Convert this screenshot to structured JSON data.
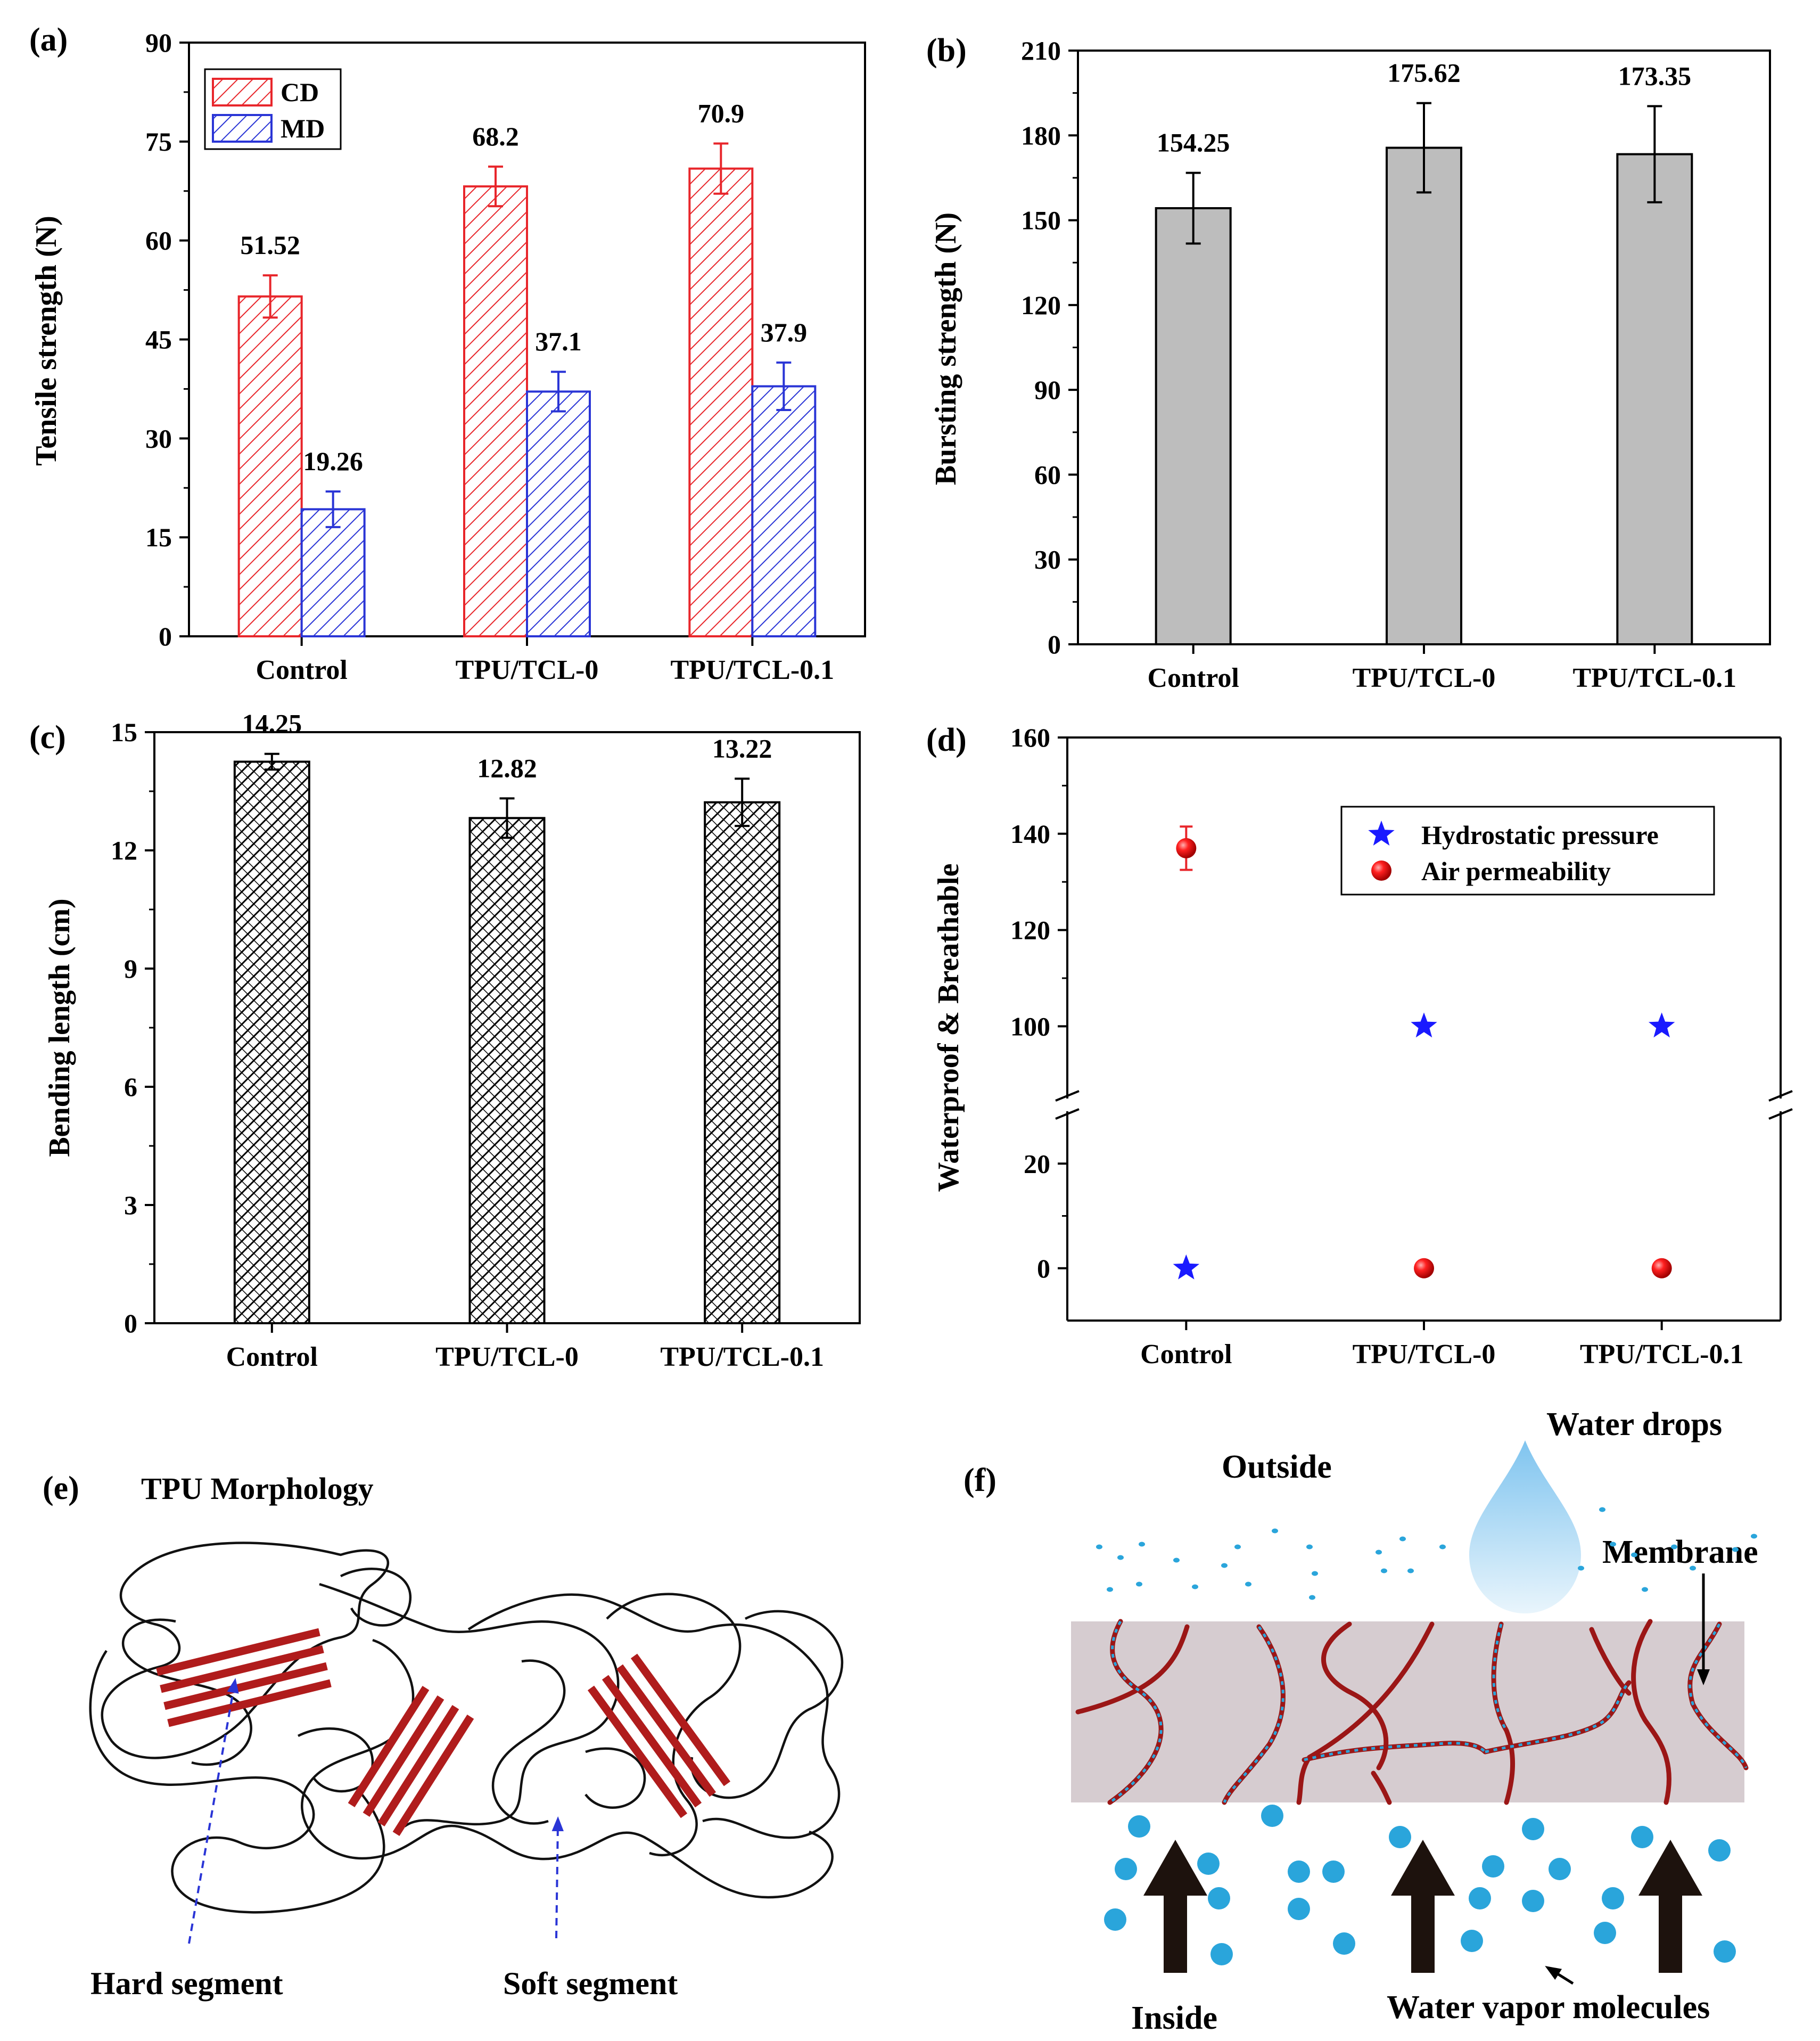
{
  "chart_data": [
    {
      "panel": "(a)",
      "type": "bar",
      "categories": [
        "Control",
        "TPU/TCL-0",
        "TPU/TCL-0.1"
      ],
      "series": [
        {
          "name": "CD",
          "color": "#e8262b",
          "values": [
            51.52,
            68.2,
            70.9
          ],
          "errors": [
            3.2,
            3.0,
            3.8
          ],
          "labels": [
            "51.52",
            "68.2",
            "70.9"
          ]
        },
        {
          "name": "MD",
          "color": "#2a35d6",
          "values": [
            19.26,
            37.1,
            37.9
          ],
          "errors": [
            2.7,
            3.0,
            3.6
          ],
          "labels": [
            "19.26",
            "37.1",
            "37.9"
          ]
        }
      ],
      "ylabel": "Tensile strength (N)",
      "ylim": [
        0,
        90
      ],
      "yticks": [
        0,
        15,
        30,
        45,
        60,
        75,
        90
      ],
      "ytick_labels": [
        "0",
        "15",
        "30",
        "45",
        "60",
        "75",
        "90"
      ],
      "legend": "top-left"
    },
    {
      "panel": "(b)",
      "type": "bar",
      "categories": [
        "Control",
        "TPU/TCL-0",
        "TPU/TCL-0.1"
      ],
      "series": [
        {
          "name": "Bursting strength",
          "color": "#bdbdbd",
          "values": [
            154.25,
            175.62,
            173.35
          ],
          "errors": [
            12.5,
            15.8,
            17.0
          ],
          "labels": [
            "154.25",
            "175.62",
            "173.35"
          ]
        }
      ],
      "ylabel": "Bursting strength (N)",
      "ylim": [
        0,
        210
      ],
      "yticks": [
        0,
        30,
        60,
        90,
        120,
        150,
        180,
        210
      ],
      "ytick_labels": [
        "0",
        "30",
        "60",
        "90",
        "120",
        "150",
        "180",
        "210"
      ]
    },
    {
      "panel": "(c)",
      "type": "bar",
      "categories": [
        "Control",
        "TPU/TCL-0",
        "TPU/TCL-0.1"
      ],
      "series": [
        {
          "name": "Bending length",
          "color": "#000000",
          "values": [
            14.25,
            12.82,
            13.22
          ],
          "errors": [
            0.2,
            0.5,
            0.6
          ],
          "labels": [
            "14.25",
            "12.82",
            "13.22"
          ]
        }
      ],
      "ylabel": "Bending length (cm)",
      "ylim": [
        0,
        15
      ],
      "yticks": [
        0,
        3,
        6,
        9,
        12,
        15
      ],
      "ytick_labels": [
        "0",
        "3",
        "6",
        "9",
        "12",
        "15"
      ]
    },
    {
      "panel": "(d)",
      "type": "scatter",
      "categories": [
        "Control",
        "TPU/TCL-0",
        "TPU/TCL-0.1"
      ],
      "series": [
        {
          "name": "Hydrostatic pressure",
          "marker": "star",
          "color": "#1a1aff",
          "values": [
            0,
            100,
            100
          ]
        },
        {
          "name": "Air permeability",
          "marker": "circle",
          "color": "#e8262b",
          "values": [
            137,
            0,
            0
          ],
          "errors": [
            4.5,
            0,
            0
          ]
        }
      ],
      "ylabel": "Waterproof & Breathable",
      "ylim": [
        -10,
        160
      ],
      "axis_break": [
        30,
        85
      ],
      "yticks": [
        0,
        20,
        100,
        120,
        140,
        160
      ],
      "ytick_labels": [
        "0",
        "20",
        "100",
        "120",
        "140",
        "160"
      ],
      "legend": "top-right"
    }
  ],
  "panel_e": {
    "label": "(e)",
    "title": "TPU Morphology",
    "hard_segment": "Hard segment",
    "soft_segment": "Soft segment",
    "hard_color": "#b01c1c"
  },
  "panel_f": {
    "label": "(f)",
    "outside": "Outside",
    "water_drops": "Water drops",
    "membrane": "Membrane",
    "inside": "Inside",
    "vapor": "Water vapor molecules",
    "membrane_color": "#d6ccd0",
    "chain_color": "#9b1616",
    "dot_color": "#2aa5db"
  }
}
